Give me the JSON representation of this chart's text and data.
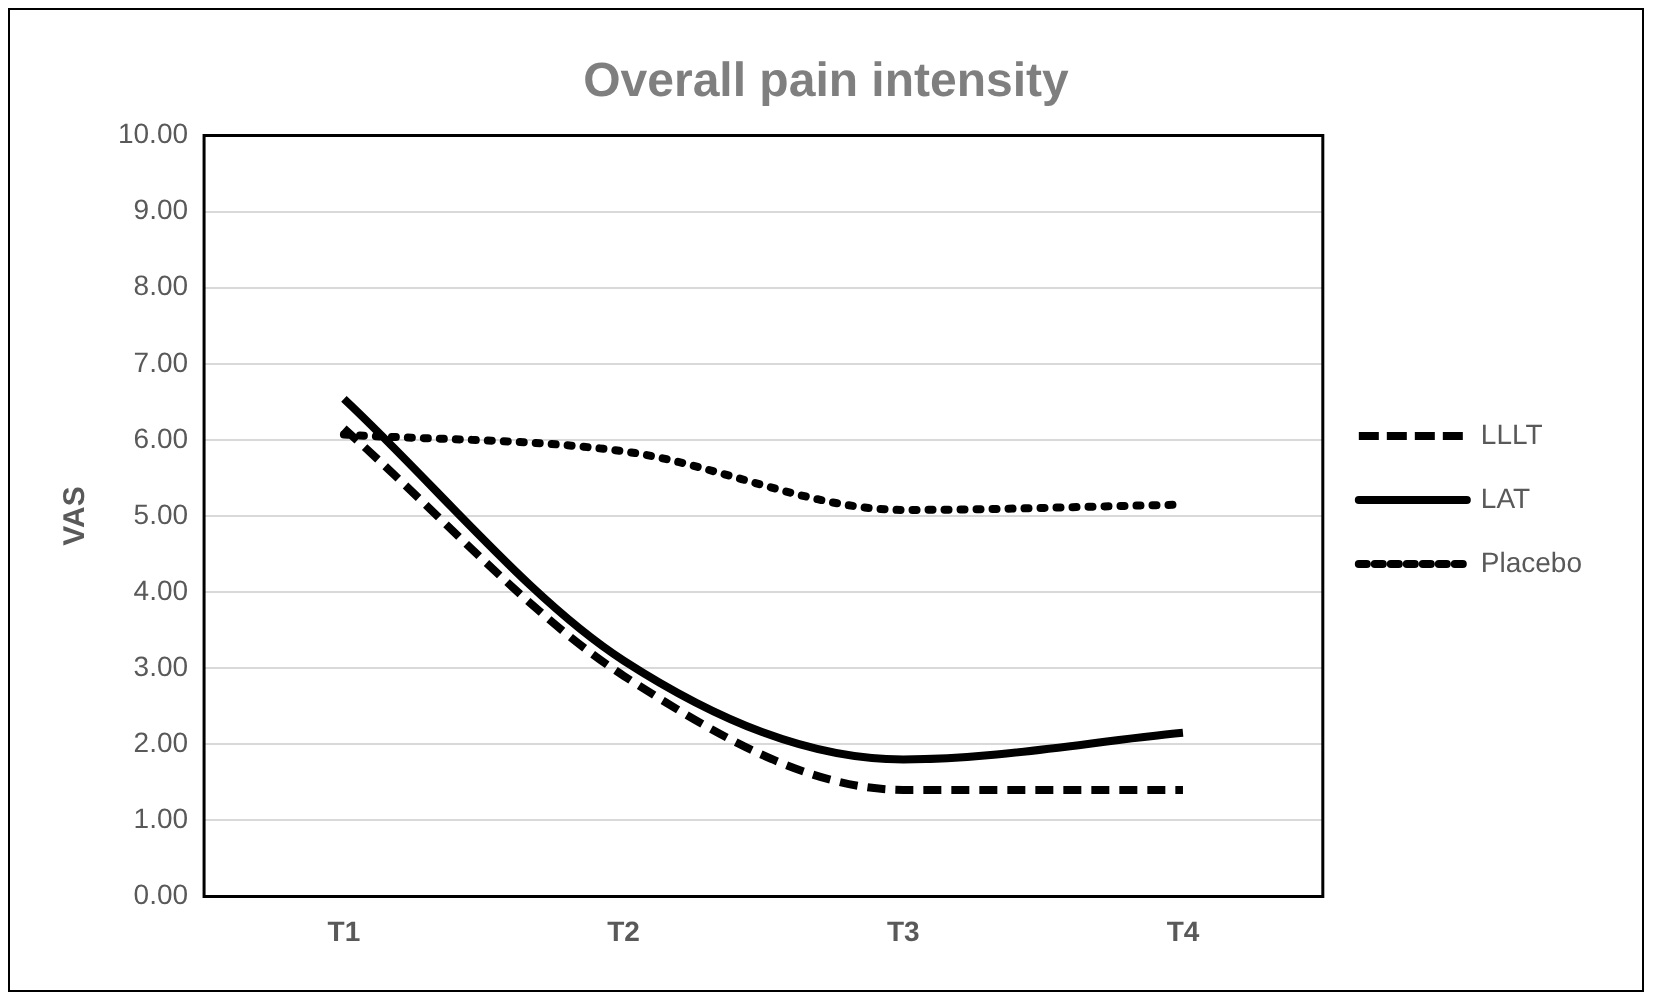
{
  "chart_data": {
    "type": "line",
    "title": "Overall pain intensity",
    "ylabel": "VAS",
    "categories": [
      "T1",
      "T2",
      "T3",
      "T4"
    ],
    "series": [
      {
        "name": "LLLT",
        "color": "#000000",
        "line_style": "dashed",
        "values": [
          6.15,
          2.9,
          1.4,
          1.4
        ]
      },
      {
        "name": "LAT",
        "color": "#000000",
        "line_style": "solid",
        "values": [
          6.54,
          3.1,
          1.8,
          2.15
        ]
      },
      {
        "name": "Placebo",
        "color": "#000000",
        "line_style": "dotted",
        "values": [
          6.07,
          5.85,
          5.08,
          5.15
        ]
      }
    ],
    "ylim": [
      0,
      10
    ],
    "yticks": [
      {
        "value": 0,
        "label": "0.00"
      },
      {
        "value": 1,
        "label": "1.00"
      },
      {
        "value": 2,
        "label": "2.00"
      },
      {
        "value": 3,
        "label": "3.00"
      },
      {
        "value": 4,
        "label": "4.00"
      },
      {
        "value": 5,
        "label": "5.00"
      },
      {
        "value": 6,
        "label": "6.00"
      },
      {
        "value": 7,
        "label": "7.00"
      },
      {
        "value": 8,
        "label": "8.00"
      },
      {
        "value": 9,
        "label": "9.00"
      },
      {
        "value": 10,
        "label": "10.00"
      }
    ],
    "grid": "y",
    "legend": "right",
    "marker": "none"
  }
}
